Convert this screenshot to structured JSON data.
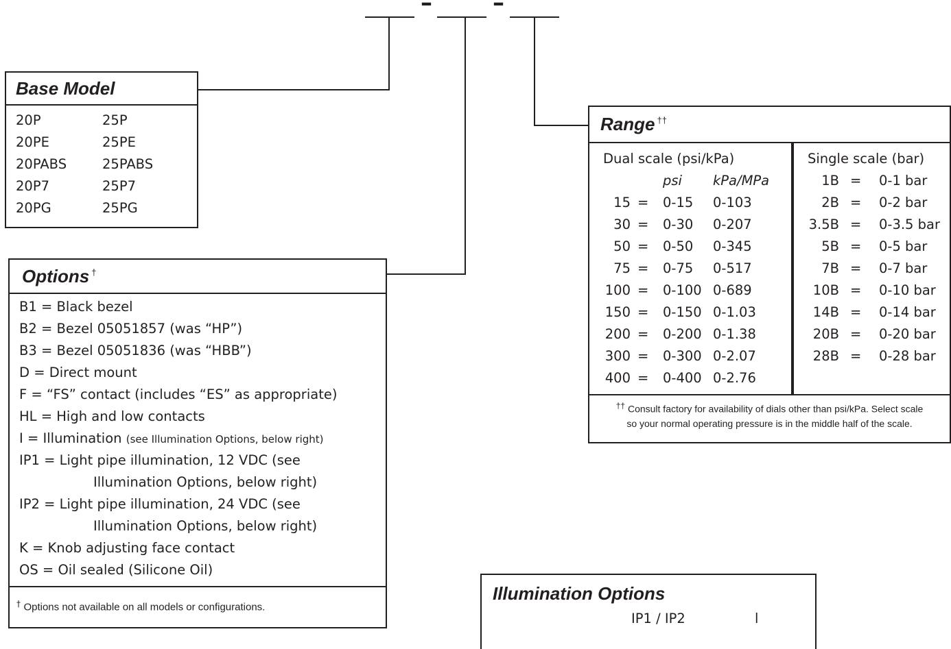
{
  "model_code": {
    "separator": "–"
  },
  "base_model": {
    "title": "Base Model",
    "col1": [
      "20P",
      "20PE",
      "20PABS",
      "20P7",
      "20PG"
    ],
    "col2": [
      "25P",
      "25PE",
      "25PABS",
      "25P7",
      "25PG"
    ]
  },
  "options": {
    "title": "Options",
    "title_mark": "†",
    "items": [
      "B1 = Black bezel",
      "B2 = Bezel 05051857 (was “HP”)",
      "B3 = Bezel 05051836 (was “HBB”)",
      "D = Direct mount",
      "F = “FS” contact (includes “ES” as appropriate)",
      "HL = High and low contacts",
      "I = Illumination",
      "IP1 = Light pipe illumination, 12 VDC (see",
      "Illumination Options, below right)",
      "IP2 = Light pipe illumination, 24 VDC (see",
      "Illumination Options, below right)",
      "K = Knob adjusting face contact",
      "OS = Oil sealed (Silicone Oil)"
    ],
    "illumination_note": "(see Illumination Options, below right)",
    "footnote_mark": "†",
    "footnote": "Options not available on all models or configurations."
  },
  "range": {
    "title": "Range",
    "title_mark": "††",
    "dual_heading": "Dual scale (psi/kPa)",
    "single_heading": "Single scale (bar)",
    "col_psi": "psi",
    "col_kpa": "kPa/MPa",
    "eq": "=",
    "dual_rows": [
      {
        "code": "15",
        "psi": "0-15",
        "kpa": "0-103"
      },
      {
        "code": "30",
        "psi": "0-30",
        "kpa": "0-207"
      },
      {
        "code": "50",
        "psi": "0-50",
        "kpa": "0-345"
      },
      {
        "code": "75",
        "psi": "0-75",
        "kpa": "0-517"
      },
      {
        "code": "100",
        "psi": "0-100",
        "kpa": "0-689"
      },
      {
        "code": "150",
        "psi": "0-150",
        "kpa": "0-1.03"
      },
      {
        "code": "200",
        "psi": "0-200",
        "kpa": "0-1.38"
      },
      {
        "code": "300",
        "psi": "0-300",
        "kpa": "0-2.07"
      },
      {
        "code": "400",
        "psi": "0-400",
        "kpa": "0-2.76"
      }
    ],
    "single_rows": [
      {
        "code": "1B",
        "bar": "0-1 bar"
      },
      {
        "code": "2B",
        "bar": "0-2 bar"
      },
      {
        "code": "3.5B",
        "bar": "0-3.5 bar"
      },
      {
        "code": "5B",
        "bar": "0-5 bar"
      },
      {
        "code": "7B",
        "bar": "0-7 bar"
      },
      {
        "code": "10B",
        "bar": "0-10 bar"
      },
      {
        "code": "14B",
        "bar": "0-14 bar"
      },
      {
        "code": "20B",
        "bar": "0-20 bar"
      },
      {
        "code": "28B",
        "bar": "0-28 bar"
      }
    ],
    "footnote_mark": "††",
    "footnote_line1": "Consult factory for availability of dials other than psi/kPa. Select scale",
    "footnote_line2": "so your normal operating pressure is in the middle half of the scale."
  },
  "illumination": {
    "title": "Illumination Options",
    "partial_text": "IP1 / IP2",
    "partial_text2": "l"
  }
}
